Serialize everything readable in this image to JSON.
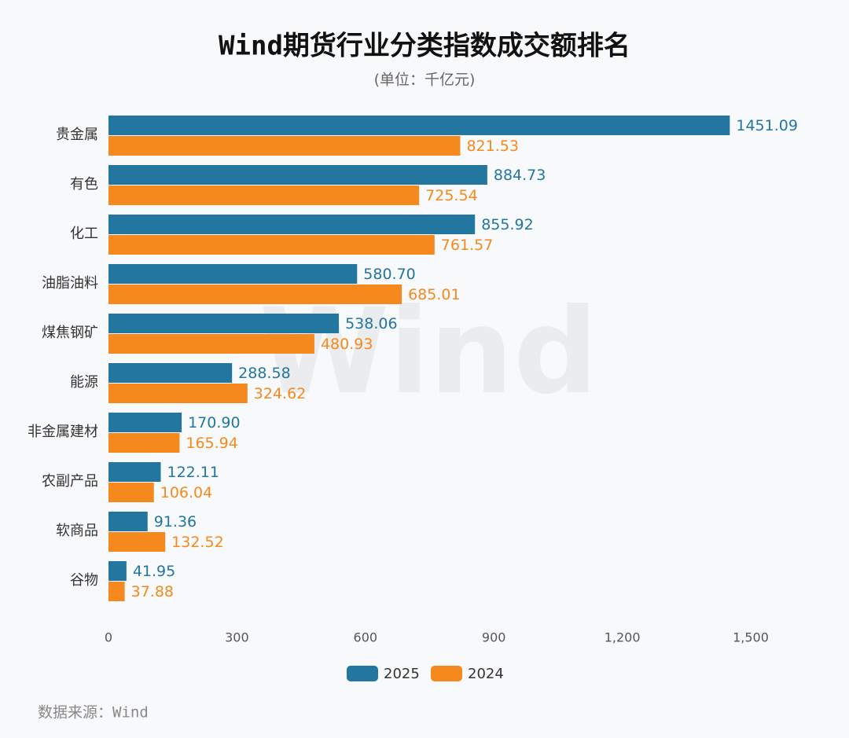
{
  "chart_data": {
    "type": "bar",
    "orientation": "horizontal",
    "title": "Wind期货行业分类指数成交额排名",
    "subtitle": "(单位：千亿元)",
    "source": "数据来源：Wind",
    "watermark": "Wind",
    "categories": [
      "贵金属",
      "有色",
      "化工",
      "油脂油料",
      "煤焦钢矿",
      "能源",
      "非金属建材",
      "农副产品",
      "软商品",
      "谷物"
    ],
    "series": [
      {
        "name": "2025",
        "color": "#23769f",
        "values": [
          1451.09,
          884.73,
          855.92,
          580.7,
          538.06,
          288.58,
          170.9,
          122.11,
          91.36,
          41.95
        ],
        "value_labels": [
          "1451.09",
          "884.73",
          "855.92",
          "580.70",
          "538.06",
          "288.58",
          "170.90",
          "122.11",
          "91.36",
          "41.95"
        ]
      },
      {
        "name": "2024",
        "color": "#f5891e",
        "values": [
          821.53,
          725.54,
          761.57,
          685.01,
          480.93,
          324.62,
          165.94,
          106.04,
          132.52,
          37.88
        ],
        "value_labels": [
          "821.53",
          "725.54",
          "761.57",
          "685.01",
          "480.93",
          "324.62",
          "165.94",
          "106.04",
          "132.52",
          "37.88"
        ]
      }
    ],
    "xlim": [
      0,
      1500
    ],
    "xticks": [
      0,
      300,
      600,
      900,
      {
        "value": 1200,
        "label": "1,200"
      },
      {
        "value": 1500,
        "label": "1,500"
      }
    ],
    "grid": false,
    "legend": "bottom"
  }
}
